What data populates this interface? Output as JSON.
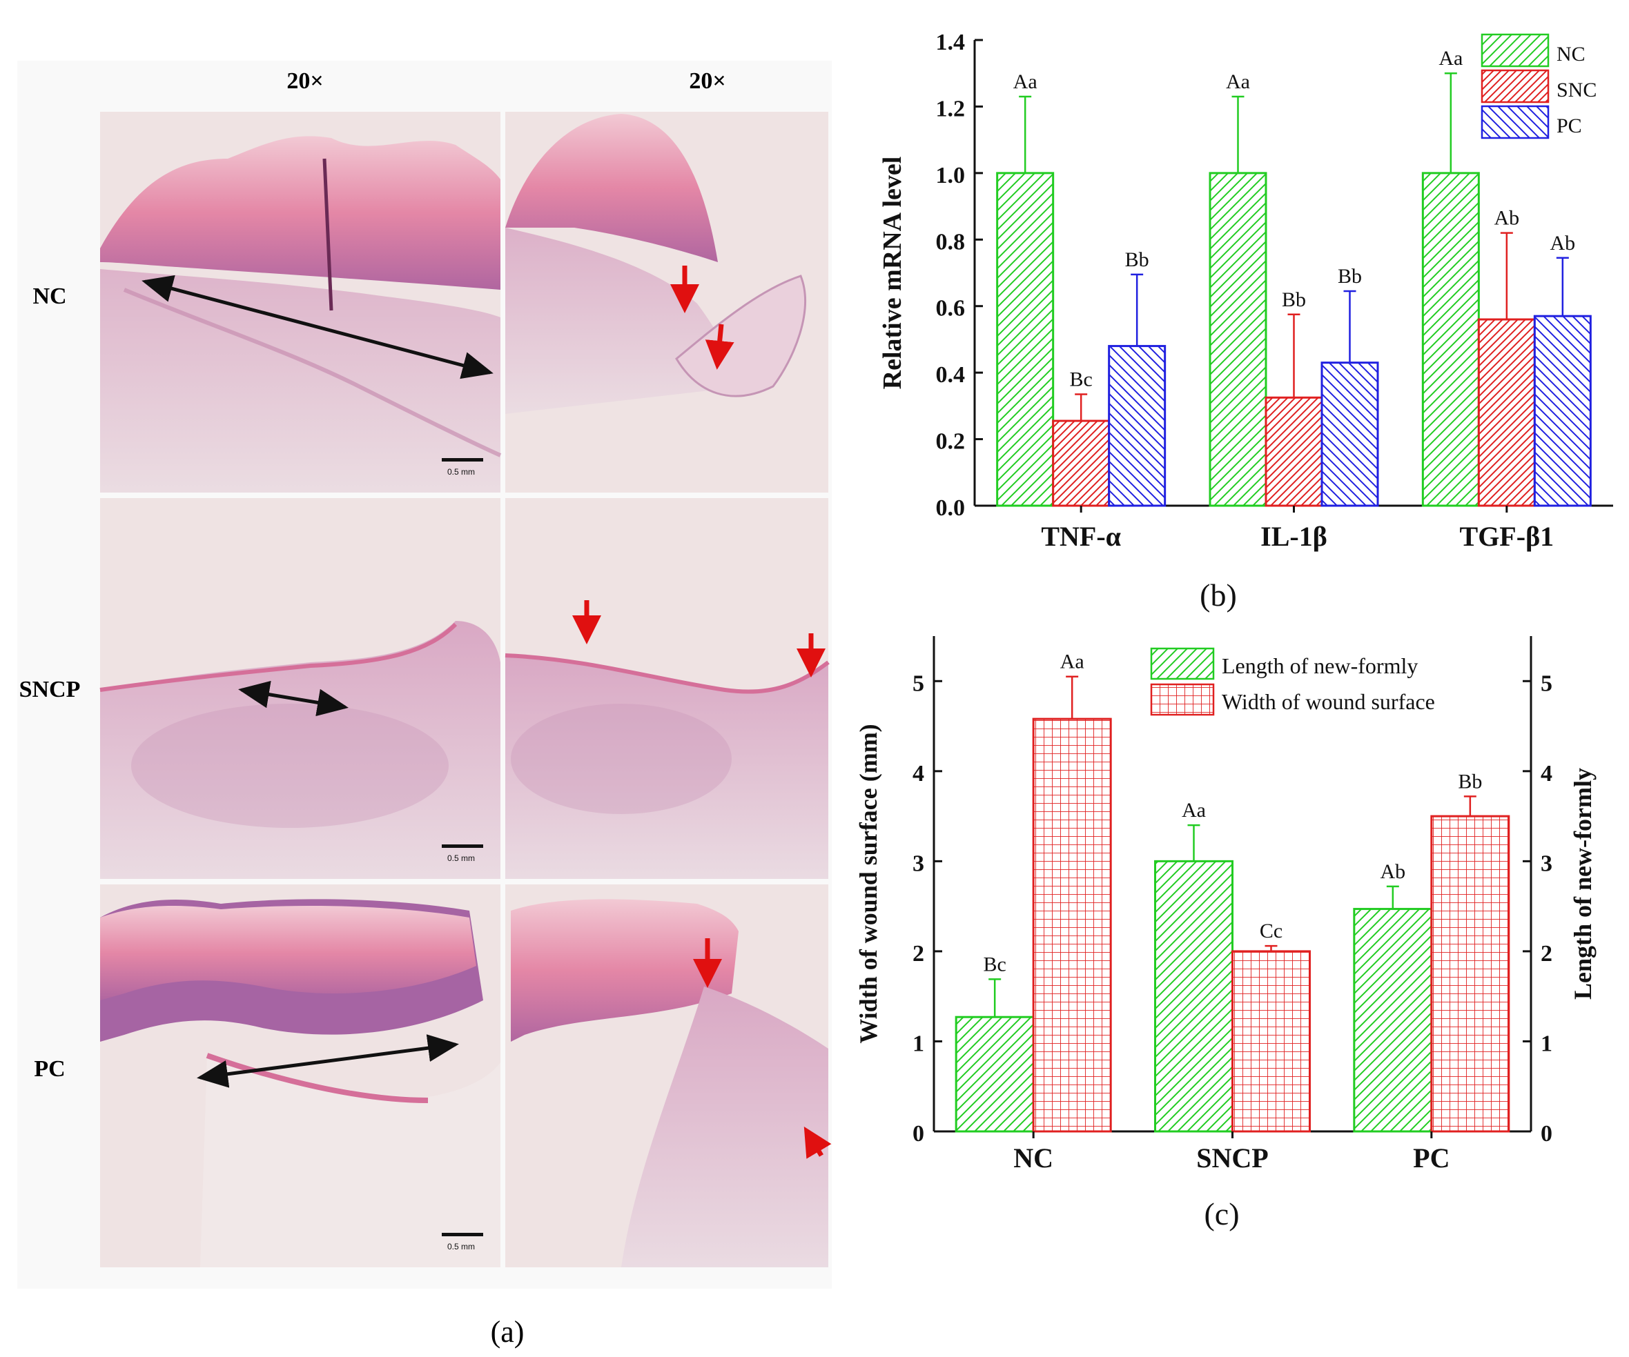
{
  "panel_a": {
    "column_labels": [
      "20×",
      "20×"
    ],
    "row_labels": [
      "NC",
      "SNCP",
      "PC"
    ],
    "scale_bar_label": "0.5 mm",
    "caption": "(a)"
  },
  "chart_data": [
    {
      "id": "b",
      "type": "bar",
      "caption": "(b)",
      "title": "",
      "xlabel": "",
      "ylabel": "Relative mRNA level",
      "ylim": [
        0,
        1.4
      ],
      "yticks": [
        0.0,
        0.2,
        0.4,
        0.6,
        0.8,
        1.0,
        1.2,
        1.4
      ],
      "ytick_labels": [
        "0.0",
        "0.2",
        "0.4",
        "0.6",
        "0.8",
        "1.0",
        "1.2",
        "1.4"
      ],
      "categories": [
        "TNF-α",
        "IL-1β",
        "TGF-β1"
      ],
      "legend_position": "top-right",
      "series": [
        {
          "name": "NC",
          "color": "#22cc22",
          "pattern": "diag-up",
          "values": [
            1.0,
            1.0,
            1.0
          ],
          "errors": [
            0.23,
            0.23,
            0.3
          ],
          "labels": [
            "Aa",
            "Aa",
            "Aa"
          ]
        },
        {
          "name": "SNC",
          "color": "#e02020",
          "pattern": "diag-up",
          "values": [
            0.255,
            0.325,
            0.56
          ],
          "errors": [
            0.08,
            0.25,
            0.26
          ],
          "labels": [
            "Bc",
            "Bb",
            "Ab"
          ]
        },
        {
          "name": "PC",
          "color": "#2020e0",
          "pattern": "diag-down",
          "values": [
            0.48,
            0.43,
            0.57
          ],
          "errors": [
            0.215,
            0.215,
            0.175
          ],
          "labels": [
            "Bb",
            "Bb",
            "Ab"
          ]
        }
      ]
    },
    {
      "id": "c",
      "type": "bar",
      "caption": "(c)",
      "title": "",
      "xlabel": "",
      "ylabel": "Width of wound surface (mm)",
      "ylabel_right": "Length of new-formly",
      "ylim": [
        0,
        5.5
      ],
      "yticks": [
        0,
        1,
        2,
        3,
        4,
        5
      ],
      "ytick_labels": [
        "0",
        "1",
        "2",
        "3",
        "4",
        "5"
      ],
      "ylim_right": [
        0,
        5.5
      ],
      "yticks_right": [
        0,
        1,
        2,
        3,
        4,
        5
      ],
      "ytick_labels_right": [
        "0",
        "1",
        "2",
        "3",
        "4",
        "5"
      ],
      "categories": [
        "NC",
        "SNCP",
        "PC"
      ],
      "legend_position": "top-right",
      "series": [
        {
          "name": "Length of new-formly",
          "color": "#22cc22",
          "pattern": "diag-up",
          "values": [
            1.27,
            3.0,
            2.47
          ],
          "errors": [
            0.42,
            0.4,
            0.25
          ],
          "labels": [
            "Bc",
            "Aa",
            "Ab"
          ]
        },
        {
          "name": "Width of wound surface",
          "color": "#e02020",
          "pattern": "grid",
          "values": [
            4.58,
            2.0,
            3.5
          ],
          "errors": [
            0.47,
            0.06,
            0.22
          ],
          "labels": [
            "Aa",
            "Cc",
            "Bb"
          ]
        }
      ]
    }
  ],
  "colors": {
    "green": "#22cc22",
    "red": "#e02020",
    "blue": "#2020e0",
    "arrow_red": "#e01010",
    "tissue_pink": "#e79bb5",
    "tissue_purple": "#9b5b9b",
    "background_tissue": "#efe3e3"
  }
}
